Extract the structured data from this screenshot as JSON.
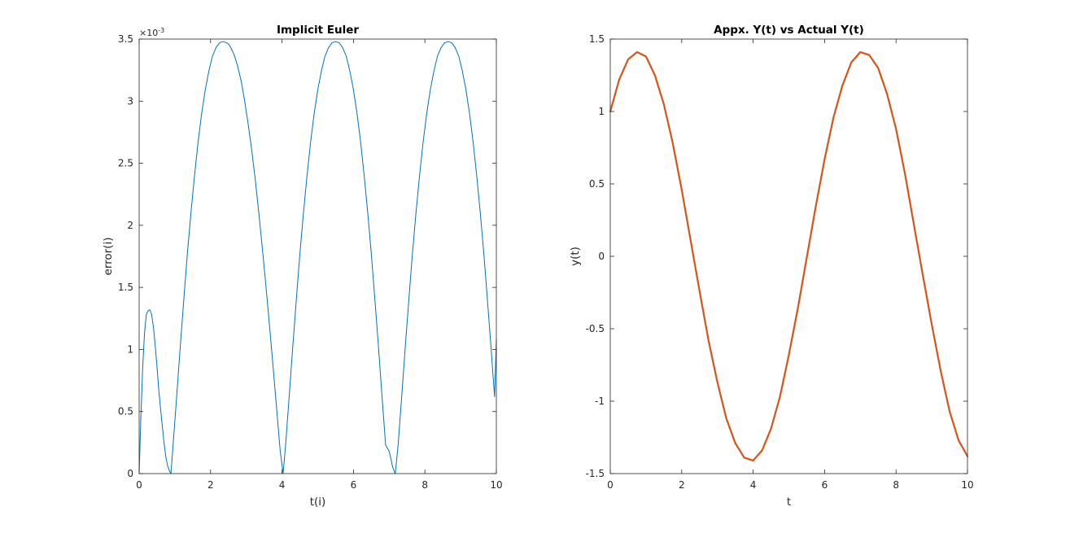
{
  "chart_data": [
    {
      "type": "line",
      "title": "Implicit Euler",
      "xlabel": "t(i)",
      "ylabel": "error(i)",
      "xlim": [
        0,
        10
      ],
      "ylim": [
        0,
        3.5
      ],
      "y_exponent": "×10",
      "y_exponent_power": "-3",
      "x_ticks": [
        0,
        2,
        4,
        6,
        8,
        10
      ],
      "y_ticks": [
        0,
        0.5,
        1,
        1.5,
        2,
        2.5,
        3,
        3.5
      ],
      "x_tick_labels": [
        "0",
        "2",
        "4",
        "6",
        "8",
        "10"
      ],
      "y_tick_labels": [
        "0",
        "0.5",
        "1",
        "1.5",
        "2",
        "2.5",
        "3",
        "3.5"
      ],
      "grid": false,
      "box": true,
      "series": [
        {
          "color": "#0072BD",
          "x": [
            0,
            0.05,
            0.1,
            0.15,
            0.2,
            0.25,
            0.3,
            0.35,
            0.4,
            0.45,
            0.5,
            0.55,
            0.6,
            0.65,
            0.7,
            0.75,
            0.8,
            0.85,
            0.89,
            0.95,
            1.05,
            1.15,
            1.25,
            1.35,
            1.45,
            1.55,
            1.65,
            1.75,
            1.85,
            1.95,
            2.05,
            2.15,
            2.25,
            2.35,
            2.45,
            2.5,
            2.55,
            2.65,
            2.75,
            2.85,
            2.95,
            3.05,
            3.15,
            3.25,
            3.35,
            3.45,
            3.55,
            3.65,
            3.75,
            3.85,
            3.95,
            4.03,
            4.1,
            4.2,
            4.3,
            4.4,
            4.5,
            4.6,
            4.7,
            4.8,
            4.9,
            5.0,
            5.1,
            5.2,
            5.3,
            5.4,
            5.5,
            5.6,
            5.7,
            5.8,
            5.9,
            6.0,
            6.1,
            6.2,
            6.3,
            6.4,
            6.5,
            6.6,
            6.7,
            6.8,
            6.9,
            7.0,
            7.1,
            7.17,
            7.25,
            7.35,
            7.45,
            7.55,
            7.65,
            7.75,
            7.85,
            7.95,
            8.05,
            8.15,
            8.25,
            8.35,
            8.45,
            8.55,
            8.65,
            8.75,
            8.85,
            8.95,
            9.05,
            9.15,
            9.25,
            9.35,
            9.45,
            9.55,
            9.65,
            9.75,
            9.85,
            9.95,
            10.0
          ],
          "y": [
            0,
            0.47,
            0.86,
            1.13,
            1.28,
            1.31,
            1.32,
            1.28,
            1.18,
            1.03,
            0.86,
            0.67,
            0.52,
            0.38,
            0.24,
            0.13,
            0.06,
            0.02,
            0,
            0.23,
            0.62,
            1.02,
            1.4,
            1.77,
            2.1,
            2.4,
            2.67,
            2.9,
            3.09,
            3.24,
            3.36,
            3.43,
            3.47,
            3.48,
            3.47,
            3.46,
            3.44,
            3.38,
            3.29,
            3.17,
            3.01,
            2.82,
            2.61,
            2.37,
            2.1,
            1.81,
            1.51,
            1.19,
            0.86,
            0.52,
            0.18,
            0,
            0.23,
            0.62,
            1.02,
            1.4,
            1.77,
            2.1,
            2.4,
            2.67,
            2.9,
            3.09,
            3.24,
            3.36,
            3.43,
            3.47,
            3.48,
            3.47,
            3.43,
            3.36,
            3.24,
            3.09,
            2.9,
            2.67,
            2.4,
            2.1,
            1.77,
            1.4,
            1.02,
            0.62,
            0.23,
            0.18,
            0.05,
            0,
            0.23,
            0.62,
            1.02,
            1.4,
            1.77,
            2.1,
            2.4,
            2.67,
            2.9,
            3.09,
            3.24,
            3.36,
            3.43,
            3.47,
            3.48,
            3.47,
            3.43,
            3.36,
            3.24,
            3.09,
            2.9,
            2.67,
            2.4,
            2.1,
            1.77,
            1.4,
            1.02,
            0.62,
            1.08
          ]
        }
      ]
    },
    {
      "type": "line",
      "title": "Appx. Y(t) vs Actual Y(t)",
      "xlabel": "t",
      "ylabel": "y(t)",
      "xlim": [
        0,
        10
      ],
      "ylim": [
        -1.5,
        1.5
      ],
      "x_ticks": [
        0,
        2,
        4,
        6,
        8,
        10
      ],
      "y_ticks": [
        -1.5,
        -1,
        -0.5,
        0,
        0.5,
        1,
        1.5
      ],
      "x_tick_labels": [
        "0",
        "2",
        "4",
        "6",
        "8",
        "10"
      ],
      "y_tick_labels": [
        "-1.5",
        "-1",
        "-0.5",
        "0",
        "0.5",
        "1",
        "1.5"
      ],
      "grid": false,
      "box": true,
      "series": [
        {
          "color": "#0072BD",
          "x": [
            0,
            0.25,
            0.5,
            0.75,
            1.0,
            1.25,
            1.5,
            1.75,
            2.0,
            2.25,
            2.5,
            2.75,
            3.0,
            3.25,
            3.5,
            3.75,
            4.0,
            4.25,
            4.5,
            4.75,
            5.0,
            5.25,
            5.5,
            5.75,
            6.0,
            6.25,
            6.5,
            6.75,
            7.0,
            7.25,
            7.5,
            7.75,
            8.0,
            8.25,
            8.5,
            8.75,
            9.0,
            9.25,
            9.5,
            9.75,
            10.0
          ],
          "y": [
            1.0,
            1.22,
            1.36,
            1.41,
            1.38,
            1.25,
            1.05,
            0.78,
            0.46,
            0.11,
            -0.24,
            -0.58,
            -0.87,
            -1.12,
            -1.29,
            -1.39,
            -1.41,
            -1.34,
            -1.19,
            -0.97,
            -0.68,
            -0.36,
            -0.01,
            0.34,
            0.67,
            0.96,
            1.18,
            1.34,
            1.41,
            1.39,
            1.3,
            1.12,
            0.88,
            0.57,
            0.22,
            -0.13,
            -0.47,
            -0.79,
            -1.07,
            -1.27,
            -1.38
          ]
        },
        {
          "color": "#D95319",
          "x": [
            0,
            0.25,
            0.5,
            0.75,
            1.0,
            1.25,
            1.5,
            1.75,
            2.0,
            2.25,
            2.5,
            2.75,
            3.0,
            3.25,
            3.5,
            3.75,
            4.0,
            4.25,
            4.5,
            4.75,
            5.0,
            5.25,
            5.5,
            5.75,
            6.0,
            6.25,
            6.5,
            6.75,
            7.0,
            7.25,
            7.5,
            7.75,
            8.0,
            8.25,
            8.5,
            8.75,
            9.0,
            9.25,
            9.5,
            9.75,
            10.0
          ],
          "y": [
            1.0,
            1.22,
            1.36,
            1.41,
            1.38,
            1.25,
            1.05,
            0.78,
            0.46,
            0.11,
            -0.24,
            -0.58,
            -0.87,
            -1.12,
            -1.29,
            -1.39,
            -1.41,
            -1.34,
            -1.19,
            -0.97,
            -0.68,
            -0.36,
            -0.01,
            0.34,
            0.67,
            0.96,
            1.18,
            1.34,
            1.41,
            1.39,
            1.3,
            1.12,
            0.88,
            0.57,
            0.22,
            -0.13,
            -0.47,
            -0.79,
            -1.07,
            -1.27,
            -1.38
          ]
        }
      ]
    }
  ]
}
